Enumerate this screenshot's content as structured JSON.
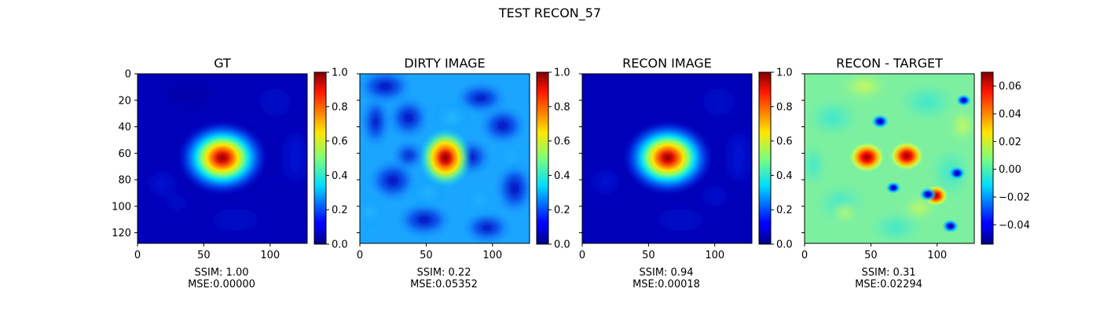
{
  "figure": {
    "suptitle": "TEST RECON_57"
  },
  "chart_data": [
    {
      "type": "heatmap",
      "title": "GT",
      "colormap": "jet",
      "x_range": [
        0,
        128
      ],
      "y_range": [
        0,
        128
      ],
      "x_ticks": [
        0,
        50,
        100
      ],
      "y_ticks": [
        0,
        20,
        40,
        60,
        80,
        100,
        120
      ],
      "show_y_tick_labels": true,
      "colorbar": {
        "range": [
          0.0,
          1.0
        ],
        "ticks": [
          "0.0",
          "0.2",
          "0.4",
          "0.6",
          "0.8",
          "1.0"
        ]
      },
      "caption": [
        "SSIM: 1.00",
        "MSE:0.00000"
      ],
      "bright_blob": {
        "x": 64,
        "y": 63,
        "peak": 1.0
      }
    },
    {
      "type": "heatmap",
      "title": "DIRTY IMAGE",
      "colormap": "jet",
      "x_range": [
        0,
        128
      ],
      "y_range": [
        0,
        128
      ],
      "x_ticks": [
        0,
        50,
        100
      ],
      "y_ticks": [
        0,
        20,
        40,
        60,
        80,
        100,
        120
      ],
      "show_y_tick_labels": false,
      "colorbar": {
        "range": [
          0.0,
          1.0
        ],
        "ticks": [
          "0.0",
          "0.2",
          "0.4",
          "0.6",
          "0.8",
          "1.0"
        ]
      },
      "caption": [
        "SSIM: 0.22",
        "MSE:0.05352"
      ],
      "bright_blob": {
        "x": 64,
        "y": 63,
        "peak": 1.0
      }
    },
    {
      "type": "heatmap",
      "title": "RECON IMAGE",
      "colormap": "jet",
      "x_range": [
        0,
        128
      ],
      "y_range": [
        0,
        128
      ],
      "x_ticks": [
        0,
        50,
        100
      ],
      "y_ticks": [
        0,
        20,
        40,
        60,
        80,
        100,
        120
      ],
      "show_y_tick_labels": false,
      "colorbar": {
        "range": [
          0.0,
          1.0
        ],
        "ticks": [
          "0.0",
          "0.2",
          "0.4",
          "0.6",
          "0.8",
          "1.0"
        ]
      },
      "caption": [
        "SSIM: 0.94",
        "MSE:0.00018"
      ],
      "bright_blob": {
        "x": 64,
        "y": 63,
        "peak": 0.97
      }
    },
    {
      "type": "heatmap",
      "title": "RECON - TARGET",
      "colormap": "jet",
      "x_range": [
        0,
        128
      ],
      "y_range": [
        0,
        128
      ],
      "x_ticks": [
        0,
        50,
        100
      ],
      "y_ticks": [
        0,
        20,
        40,
        60,
        80,
        100,
        120
      ],
      "show_y_tick_labels": false,
      "colorbar": {
        "range": [
          -0.054,
          0.07
        ],
        "ticks": [
          "0.06",
          "0.04",
          "0.02",
          "0.00",
          "−0.02",
          "−0.04"
        ]
      },
      "caption": [
        "SSIM: 0.31",
        "MSE:0.02294"
      ],
      "hot_spots": [
        {
          "x": 47,
          "y": 63,
          "value": 0.07
        },
        {
          "x": 77,
          "y": 62,
          "value": 0.065
        },
        {
          "x": 99,
          "y": 92,
          "value": 0.03
        }
      ],
      "cold_spots": [
        {
          "x": 57,
          "y": 36,
          "value": -0.05
        },
        {
          "x": 67,
          "y": 86,
          "value": -0.035
        },
        {
          "x": 93,
          "y": 91,
          "value": -0.045
        },
        {
          "x": 115,
          "y": 75,
          "value": -0.045
        },
        {
          "x": 110,
          "y": 115,
          "value": -0.045
        },
        {
          "x": 120,
          "y": 20,
          "value": -0.035
        }
      ]
    }
  ]
}
